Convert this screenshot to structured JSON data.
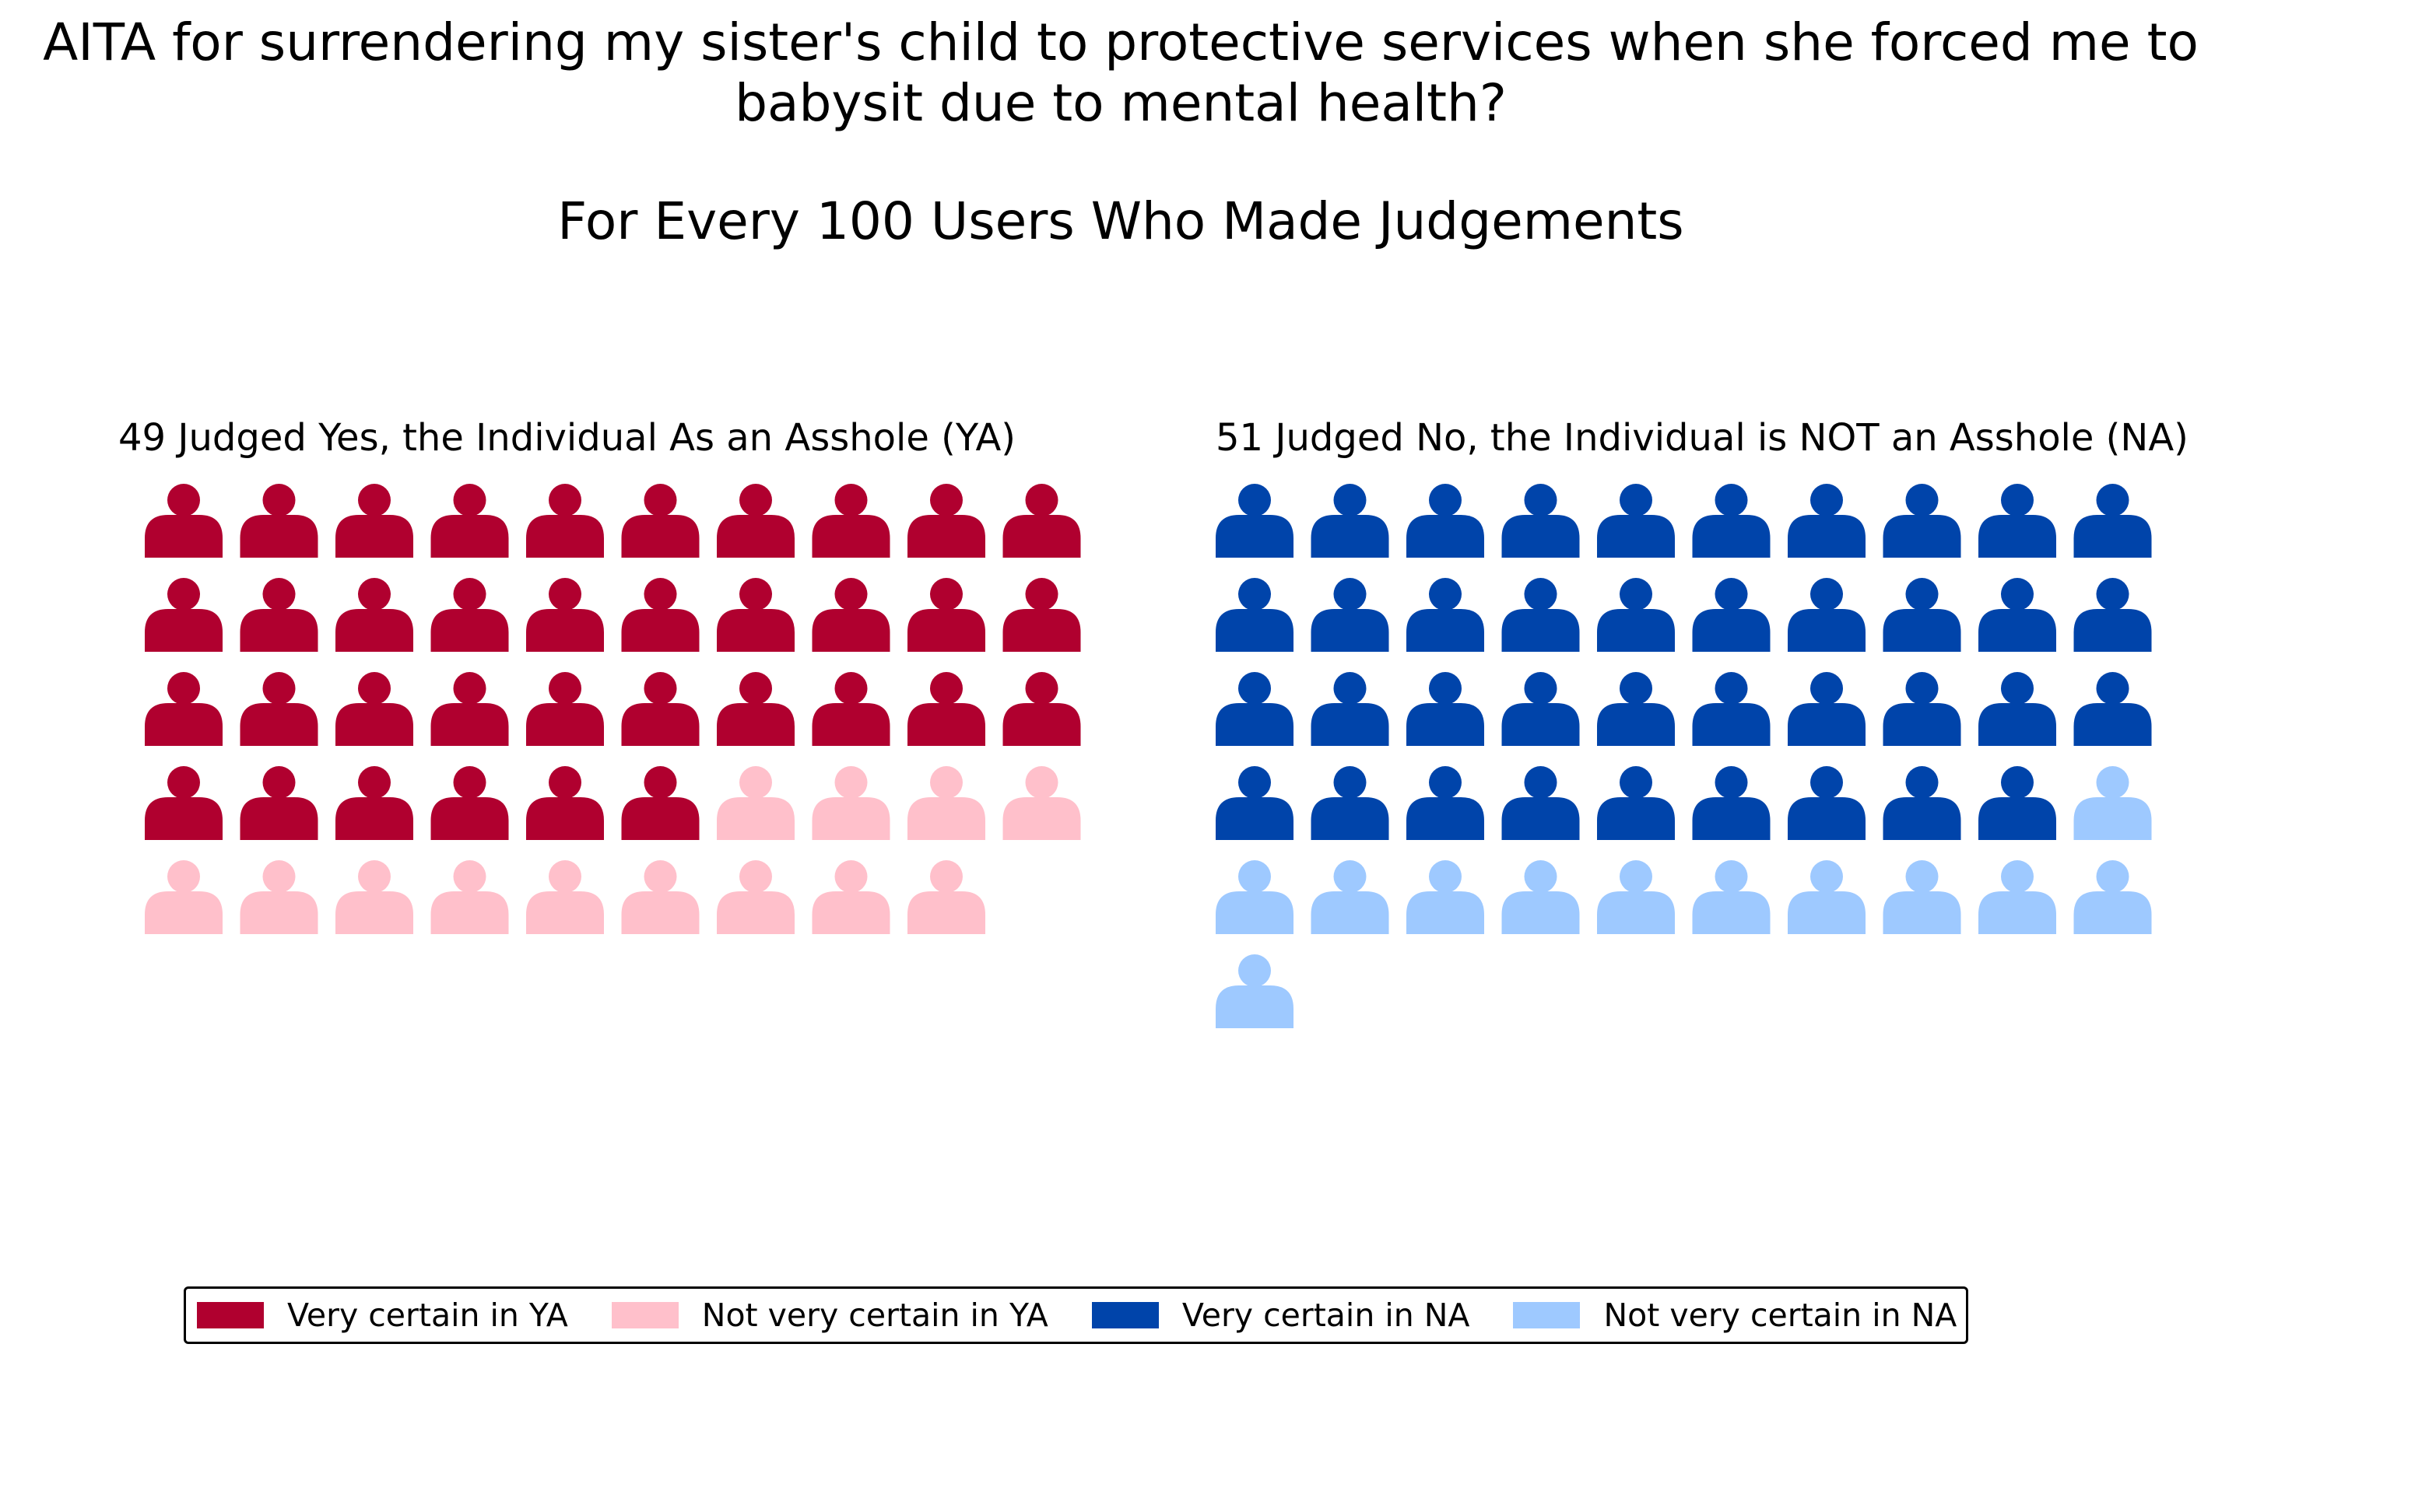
{
  "title": {
    "line1": "AITA for surrendering my sister's child to protective services when she forced me to",
    "line2": "babysit due to mental health?",
    "subtitle": "For Every 100 Users Who Made Judgements"
  },
  "colors": {
    "very_certain_ya": "#b0002f",
    "not_very_certain_ya": "#ffc0cb",
    "very_certain_na": "#0044aa",
    "not_very_certain_na": "#9ec9ff"
  },
  "icon": "person-icon",
  "chart_data": [
    {
      "type": "waffle",
      "title": "49 Judged Yes, the Individual As an Asshole (YA)",
      "columns": 10,
      "total": 49,
      "series": [
        {
          "name": "Very certain in YA",
          "value": 36,
          "color": "#b0002f"
        },
        {
          "name": "Not very certain in YA",
          "value": 13,
          "color": "#ffc0cb"
        }
      ]
    },
    {
      "type": "waffle",
      "title": "51 Judged No, the Individual is NOT an Asshole (NA)",
      "columns": 10,
      "total": 51,
      "series": [
        {
          "name": "Very certain in NA",
          "value": 39,
          "color": "#0044aa"
        },
        {
          "name": "Not very certain in NA",
          "value": 12,
          "color": "#9ec9ff"
        }
      ]
    }
  ],
  "legend": {
    "placement": "bottom",
    "items": [
      {
        "label": "Very certain in YA",
        "color": "#b0002f"
      },
      {
        "label": "Not very certain in YA",
        "color": "#ffc0cb"
      },
      {
        "label": "Very certain in NA",
        "color": "#0044aa"
      },
      {
        "label": "Not very certain in NA",
        "color": "#9ec9ff"
      }
    ]
  }
}
